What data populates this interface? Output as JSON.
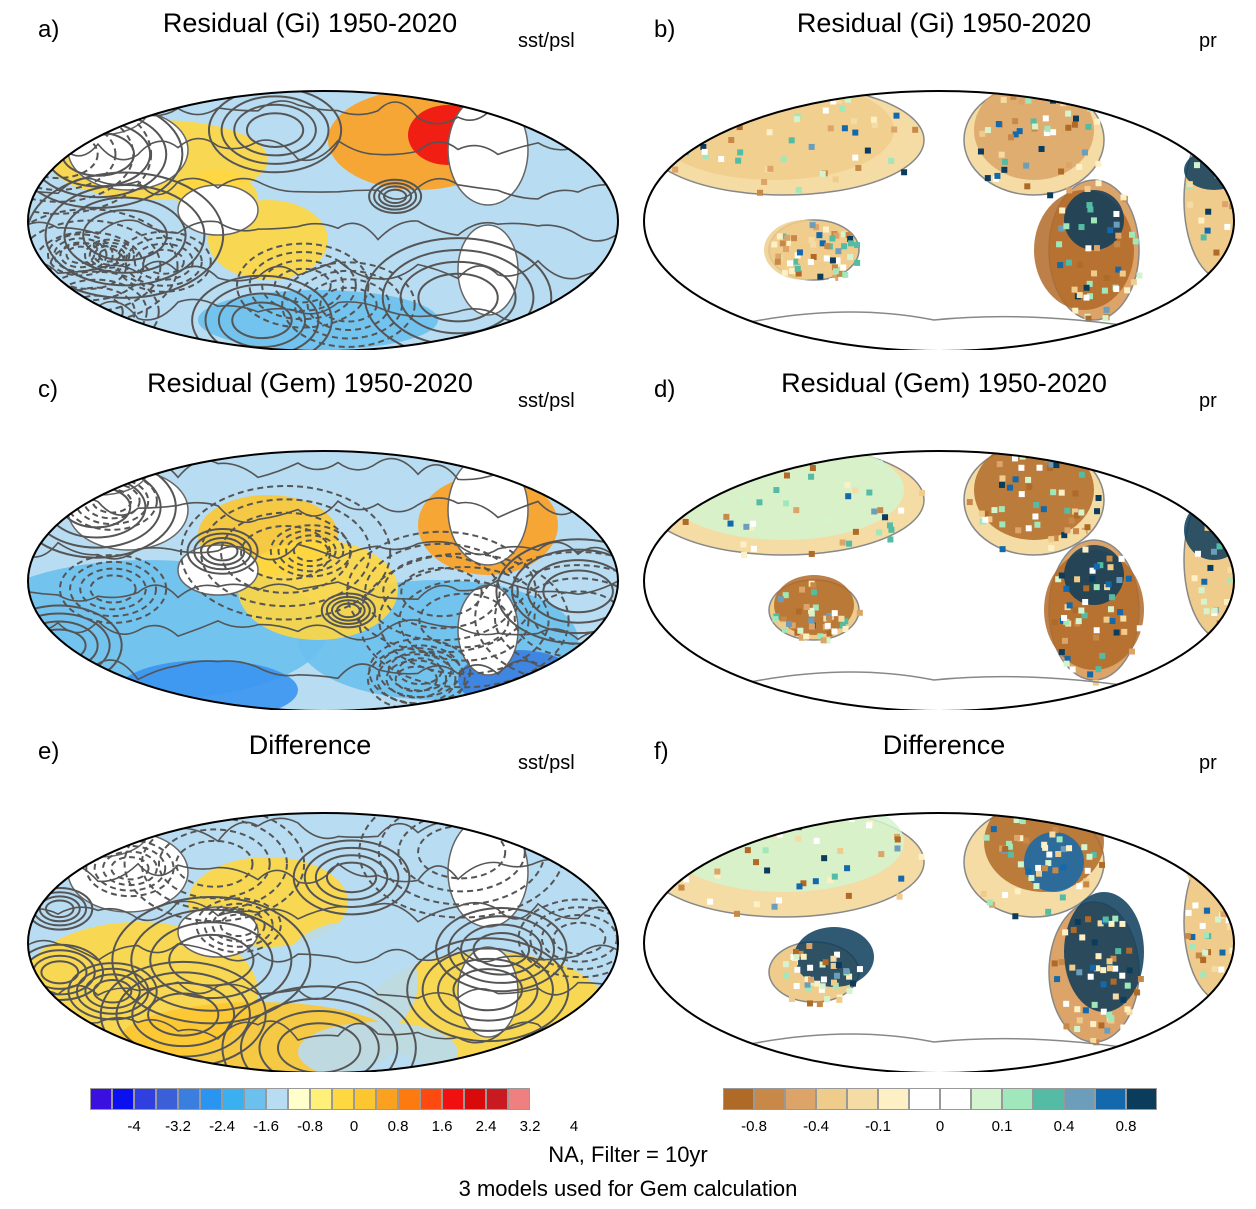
{
  "panels": [
    {
      "id": "a",
      "label": "a)",
      "title": "Residual (Gi) 1950-2020",
      "variable": "sst/psl",
      "kind": "sst"
    },
    {
      "id": "b",
      "label": "b)",
      "title": "Residual (Gi) 1950-2020",
      "variable": "pr",
      "kind": "pr"
    },
    {
      "id": "c",
      "label": "c)",
      "title": "Residual (Gem) 1950-2020",
      "variable": "sst/psl",
      "kind": "sst"
    },
    {
      "id": "d",
      "label": "d)",
      "title": "Residual (Gem) 1950-2020",
      "variable": "pr",
      "kind": "pr"
    },
    {
      "id": "e",
      "label": "e)",
      "title": "Difference",
      "variable": "sst/psl",
      "kind": "sst"
    },
    {
      "id": "f",
      "label": "f)",
      "title": "Difference",
      "variable": "pr",
      "kind": "pr"
    }
  ],
  "colorbar_sst": {
    "colors": [
      "#3a10e0",
      "#0a10f0",
      "#3040e0",
      "#3a5fd8",
      "#3a7fe0",
      "#2a95f0",
      "#3ab0f0",
      "#6cc0ee",
      "#b8dcf2",
      "#ffffcc",
      "#fff07a",
      "#ffd740",
      "#fcc630",
      "#fca020",
      "#fc7a10",
      "#fc4a10",
      "#f01010",
      "#d80a0a",
      "#c81a20",
      "#f08080"
    ],
    "tick_labels": [
      "-4",
      "-3.2",
      "-2.4",
      "-1.6",
      "-0.8",
      "0",
      "0.8",
      "1.6",
      "2.4",
      "3.2",
      "4"
    ]
  },
  "colorbar_pr": {
    "colors": [
      "#b06a28",
      "#c88848",
      "#dca468",
      "#f0cc8c",
      "#f4dca4",
      "#fcf0c4",
      "#ffffff",
      "#ffffff",
      "#d4f4d0",
      "#a0e8bc",
      "#54bca4",
      "#6c9ebc",
      "#1468ac",
      "#0c3c5c"
    ],
    "tick_labels": [
      "-0.8",
      "-0.4",
      "-0.1",
      "0",
      "0.1",
      "0.4",
      "0.8"
    ]
  },
  "footer": {
    "line1": "NA, Filter = 10yr",
    "line2": "3 models used for Gem calculation"
  }
}
